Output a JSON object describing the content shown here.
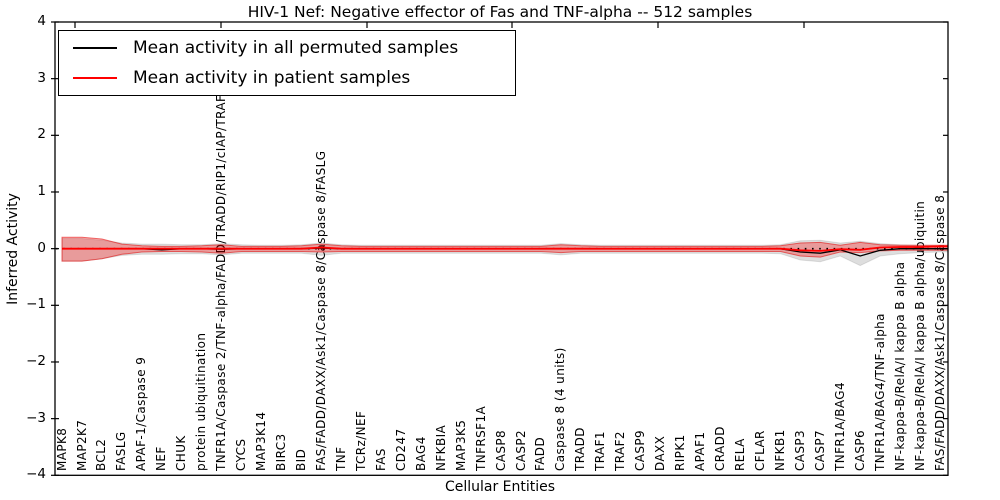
{
  "title": "HIV-1 Nef: Negative effector of Fas and TNF-alpha -- 512 samples",
  "axes": {
    "ylabel": "Inferred Activity",
    "xlabel": "Cellular Entities",
    "yticks": [
      "4",
      "3",
      "2",
      "1",
      "0",
      "−1",
      "−2",
      "−3",
      "−4"
    ],
    "ytick_values": [
      4,
      3,
      2,
      1,
      0,
      -1,
      -2,
      -3,
      -4
    ]
  },
  "legend": {
    "items": [
      {
        "label": "Mean activity in all permuted samples",
        "color": "#000000"
      },
      {
        "label": "Mean activity in patient samples",
        "color": "#ff0000"
      }
    ]
  },
  "chart_data": {
    "type": "line",
    "title": "HIV-1 Nef: Negative effector of Fas and TNF-alpha -- 512 samples",
    "xlabel": "Cellular Entities",
    "ylabel": "Inferred Activity",
    "ylim": [
      -4,
      4
    ],
    "grid": false,
    "legend_position": "upper left",
    "zero_line": 0,
    "entities": [
      "MAPK8",
      "MAP2K7",
      "BCL2",
      "FASLG",
      "APAF-1/Caspase 9",
      "NEF",
      "CHUK",
      "protein ubiquitination",
      "TNFR1A/Caspase 2/TNF-alpha/FADD/TRADD/RIP1/cIAP/TRAF2",
      "CYCS",
      "MAP3K14",
      "BIRC3",
      "BID",
      "FAS/FADD/DAXX/Ask1/Caspase 8/Caspase 8/FASLG",
      "TNF",
      "TCRz/NEF",
      "FAS",
      "CD247",
      "BAG4",
      "NFKBIA",
      "MAP3K5",
      "TNFRSF1A",
      "CASP8",
      "CASP2",
      "FADD",
      "Caspase 8 (4 units)",
      "TRADD",
      "TRAF1",
      "TRAF2",
      "CASP9",
      "DAXX",
      "RIPK1",
      "APAF1",
      "CRADD",
      "RELA",
      "CFLAR",
      "NFKB1",
      "CASP3",
      "CASP7",
      "TNFR1A/BAG4",
      "CASP6",
      "TNFR1A/BAG4/TNF-alpha",
      "NF-kappa-B/RelA/I kappa B alpha",
      "NF-kappa-B/RelA/I kappa B alpha/ubiquitin",
      "FAS/FADD/DAXX/Ask1/Caspase 8/Caspase 8"
    ],
    "series": [
      {
        "name": "Mean activity in all permuted samples",
        "color": "#000000",
        "values": [
          0,
          0,
          0,
          0,
          0,
          -0.02,
          0,
          0,
          -0.01,
          0,
          0,
          0,
          0,
          0.01,
          0,
          0,
          0,
          0,
          0,
          0,
          0,
          0,
          0,
          0,
          0,
          0,
          0,
          0,
          0,
          0,
          0,
          0,
          0,
          0,
          0,
          0,
          0,
          -0.06,
          -0.08,
          -0.02,
          -0.13,
          -0.03,
          0,
          0,
          0
        ]
      },
      {
        "name": "Mean activity in patient samples",
        "color": "#ff0000",
        "values": [
          0,
          0,
          0,
          0,
          0,
          0,
          0,
          0,
          0,
          0,
          0,
          0,
          0,
          0.02,
          0,
          0,
          0,
          0,
          0,
          0,
          0,
          0,
          0,
          0,
          0,
          0,
          0,
          0,
          0,
          0,
          0,
          0,
          0,
          0,
          0,
          0,
          0,
          -0.03,
          -0.04,
          -0.01,
          -0.02,
          0.02,
          0.03,
          0.03,
          0.04
        ]
      }
    ],
    "bands": [
      {
        "name": "permuted-samples-range",
        "fill": "rgba(0,0,0,0.13)",
        "edge": "rgba(0,0,0,0.10)",
        "upper": [
          0.18,
          0.18,
          0.15,
          0.1,
          0.08,
          0.08,
          0.07,
          0.07,
          0.09,
          0.07,
          0.06,
          0.06,
          0.07,
          0.1,
          0.07,
          0.06,
          0.06,
          0.06,
          0.06,
          0.06,
          0.06,
          0.06,
          0.06,
          0.06,
          0.06,
          0.09,
          0.07,
          0.06,
          0.06,
          0.06,
          0.06,
          0.06,
          0.06,
          0.06,
          0.06,
          0.06,
          0.07,
          0.14,
          0.15,
          0.1,
          0.13,
          0.09,
          0.07,
          0.06,
          0.05
        ],
        "lower": [
          -0.22,
          -0.22,
          -0.18,
          -0.12,
          -0.1,
          -0.1,
          -0.09,
          -0.09,
          -0.11,
          -0.08,
          -0.08,
          -0.08,
          -0.08,
          -0.12,
          -0.08,
          -0.08,
          -0.08,
          -0.08,
          -0.08,
          -0.08,
          -0.08,
          -0.08,
          -0.08,
          -0.08,
          -0.08,
          -0.11,
          -0.08,
          -0.08,
          -0.08,
          -0.08,
          -0.08,
          -0.08,
          -0.08,
          -0.08,
          -0.08,
          -0.08,
          -0.09,
          -0.2,
          -0.23,
          -0.13,
          -0.3,
          -0.13,
          -0.09,
          -0.07,
          -0.06
        ]
      },
      {
        "name": "patient-samples-range",
        "fill": "rgba(255,0,0,0.30)",
        "edge": "rgba(225,0,0,0.55)",
        "upper": [
          0.2,
          0.2,
          0.17,
          0.08,
          0.05,
          0.04,
          0.04,
          0.05,
          0.07,
          0.04,
          0.04,
          0.04,
          0.05,
          0.08,
          0.05,
          0.04,
          0.04,
          0.04,
          0.04,
          0.04,
          0.04,
          0.04,
          0.04,
          0.04,
          0.04,
          0.07,
          0.05,
          0.04,
          0.04,
          0.04,
          0.04,
          0.04,
          0.04,
          0.04,
          0.04,
          0.04,
          0.05,
          0.1,
          0.11,
          0.06,
          0.11,
          0.07,
          0.06,
          0.06,
          0.06
        ],
        "lower": [
          -0.22,
          -0.22,
          -0.18,
          -0.1,
          -0.06,
          -0.05,
          -0.05,
          -0.06,
          -0.08,
          -0.05,
          -0.05,
          -0.05,
          -0.05,
          -0.06,
          -0.05,
          -0.05,
          -0.05,
          -0.05,
          -0.05,
          -0.05,
          -0.05,
          -0.05,
          -0.05,
          -0.05,
          -0.05,
          -0.07,
          -0.05,
          -0.05,
          -0.05,
          -0.05,
          -0.05,
          -0.05,
          -0.05,
          -0.05,
          -0.05,
          -0.05,
          -0.05,
          -0.13,
          -0.15,
          -0.06,
          -0.07,
          -0.04,
          -0.03,
          -0.03,
          -0.03
        ]
      }
    ]
  }
}
